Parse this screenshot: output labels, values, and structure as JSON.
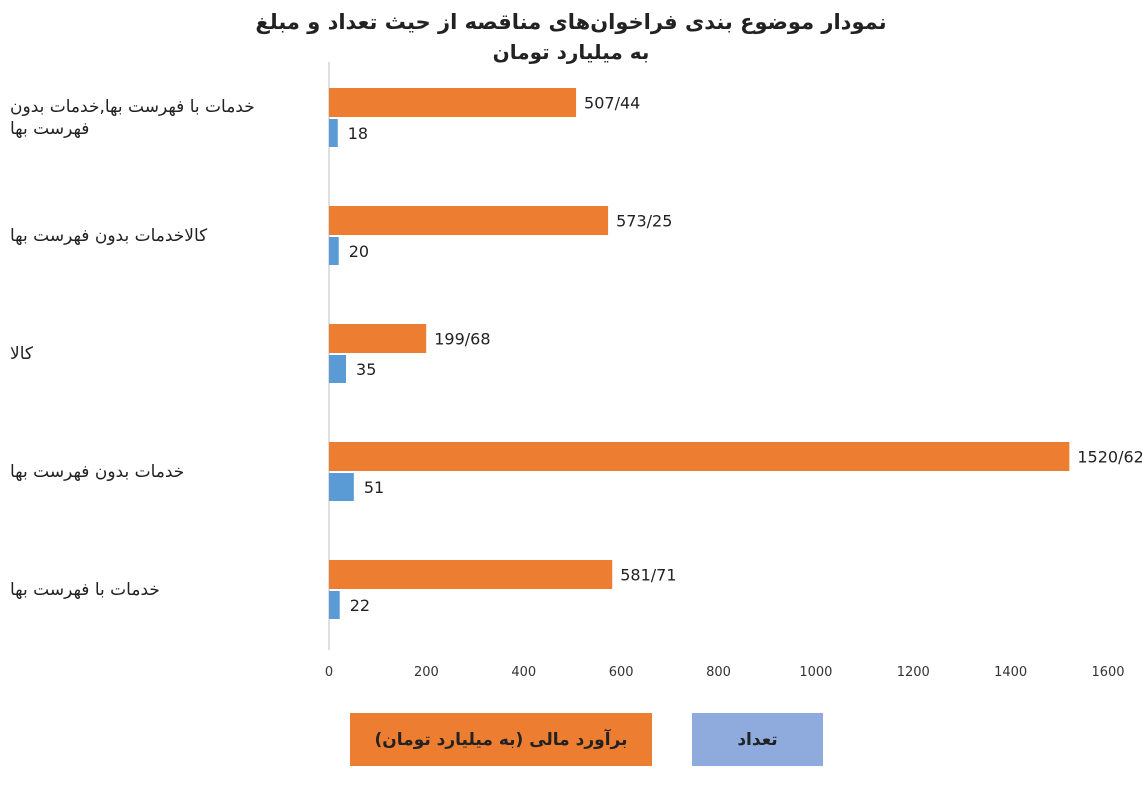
{
  "chart_data": {
    "type": "bar",
    "orientation": "horizontal",
    "title": "نمودار موضوع بندی فراخوان‌های مناقصه از حیث تعداد و مبلغ",
    "subtitle": "به میلیارد تومان",
    "categories": [
      "خدمات با فهرست بها,خدمات بدون فهرست بها",
      "کالاخدمات بدون فهرست بها",
      "کالا",
      "خدمات بدون فهرست بها",
      "خدمات با فهرست بها"
    ],
    "series": [
      {
        "name": "برآورد مالی (به میلیارد تومان)",
        "color": "#ED7D31",
        "values": [
          507.44,
          573.25,
          199.68,
          1520.62,
          581.71
        ],
        "labels": [
          "507/44",
          "573/25",
          "199/68",
          "1520/62",
          "581/71"
        ]
      },
      {
        "name": "تعداد",
        "color": "#5B9BD5",
        "values": [
          18,
          20,
          35,
          51,
          22
        ],
        "labels": [
          "18",
          "20",
          "35",
          "51",
          "22"
        ]
      }
    ],
    "xlim": [
      0,
      1600
    ],
    "xticks": [
      0,
      200,
      400,
      600,
      800,
      1000,
      1200,
      1400,
      1600
    ],
    "grid": false,
    "legend_position": "bottom"
  }
}
